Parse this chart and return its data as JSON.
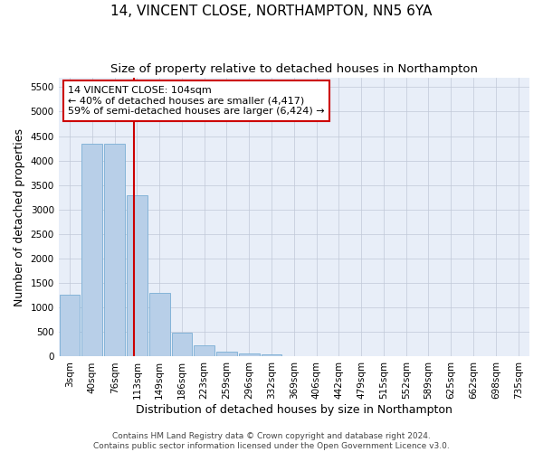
{
  "title": "14, VINCENT CLOSE, NORTHAMPTON, NN5 6YA",
  "subtitle": "Size of property relative to detached houses in Northampton",
  "xlabel": "Distribution of detached houses by size in Northampton",
  "ylabel": "Number of detached properties",
  "footer_line1": "Contains HM Land Registry data © Crown copyright and database right 2024.",
  "footer_line2": "Contains public sector information licensed under the Open Government Licence v3.0.",
  "categories": [
    "3sqm",
    "40sqm",
    "76sqm",
    "113sqm",
    "149sqm",
    "186sqm",
    "223sqm",
    "259sqm",
    "296sqm",
    "332sqm",
    "369sqm",
    "406sqm",
    "442sqm",
    "479sqm",
    "515sqm",
    "552sqm",
    "589sqm",
    "625sqm",
    "662sqm",
    "698sqm",
    "735sqm"
  ],
  "values": [
    1270,
    4350,
    4350,
    3300,
    1300,
    480,
    230,
    100,
    70,
    50,
    0,
    0,
    0,
    0,
    0,
    0,
    0,
    0,
    0,
    0,
    0
  ],
  "bar_color": "#b8cfe8",
  "bar_edge_color": "#7aaed4",
  "vline_x": 2.87,
  "vline_color": "#cc0000",
  "annotation_text_line1": "14 VINCENT CLOSE: 104sqm",
  "annotation_text_line2": "← 40% of detached houses are smaller (4,417)",
  "annotation_text_line3": "59% of semi-detached houses are larger (6,424) →",
  "ylim": [
    0,
    5700
  ],
  "yticks": [
    0,
    500,
    1000,
    1500,
    2000,
    2500,
    3000,
    3500,
    4000,
    4500,
    5000,
    5500
  ],
  "background_color": "#ffffff",
  "plot_bg_color": "#e8eef8",
  "grid_color": "#c0c8d8",
  "title_fontsize": 11,
  "subtitle_fontsize": 9.5,
  "axis_label_fontsize": 9,
  "tick_fontsize": 7.5,
  "annotation_fontsize": 8,
  "footer_fontsize": 6.5
}
